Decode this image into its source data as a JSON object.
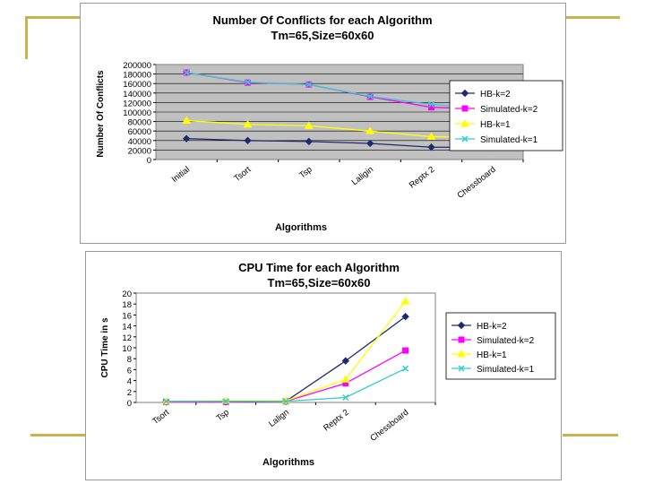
{
  "colors": {
    "deco": "#c8b44a",
    "plot_bg": "#c0c0c0",
    "hb_k2": "#1f2a6e",
    "sim_k2": "#ff00ff",
    "hb_k1": "#ffff00",
    "sim_k1": "#33cccc"
  },
  "chart_data": [
    {
      "type": "line",
      "title": "Number Of Conflicts for each Algorithm",
      "subtitle": "Tm=65,Size=60x60",
      "xlabel": "Algorithms",
      "ylabel": "Number Of Conflicts",
      "categories": [
        "Initial",
        "Tsort",
        "Tsp",
        "Laligin",
        "Reptx 2",
        "Chessboard"
      ],
      "yticks": [
        "0",
        "20000",
        "40000",
        "60000",
        "80000",
        "100000",
        "120000",
        "140000",
        "160000",
        "180000",
        "200000"
      ],
      "ylim": [
        0,
        200000
      ],
      "grid": true,
      "legend": "right",
      "series": [
        {
          "name": "HB-k=2",
          "values": [
            44000,
            40000,
            38000,
            34000,
            26000,
            26000
          ],
          "color": "#1f2a6e",
          "marker": "diamond"
        },
        {
          "name": "Simulated-k=2",
          "values": [
            183000,
            162000,
            158000,
            132000,
            110000,
            106000
          ],
          "color": "#ff00ff",
          "marker": "square"
        },
        {
          "name": "HB-k=1",
          "values": [
            82000,
            74000,
            71000,
            60000,
            48000,
            48000
          ],
          "color": "#ffff00",
          "marker": "triangle"
        },
        {
          "name": "Simulated-k=1",
          "values": [
            183000,
            163000,
            158000,
            133000,
            116000,
            108000
          ],
          "color": "#33cccc",
          "marker": "x"
        }
      ]
    },
    {
      "type": "line",
      "title": "CPU Time for each Algorithm",
      "subtitle": "Tm=65,Size=60x60",
      "xlabel": "Algorithms",
      "ylabel": "CPU Time in s",
      "categories": [
        "Tsort",
        "Tsp",
        "Lalign",
        "Reptx 2",
        "Chessboard"
      ],
      "yticks": [
        "0",
        "2",
        "4",
        "6",
        "8",
        "10",
        "12",
        "14",
        "16",
        "18",
        "20"
      ],
      "ylim": [
        0,
        20
      ],
      "grid": false,
      "legend": "right",
      "series": [
        {
          "name": "HB-k=2",
          "values": [
            0.1,
            0.1,
            0.2,
            7.6,
            15.7
          ],
          "color": "#1f2a6e",
          "marker": "diamond"
        },
        {
          "name": "Simulated-k=2",
          "values": [
            0.1,
            0.1,
            0.2,
            3.5,
            9.5
          ],
          "color": "#ff00ff",
          "marker": "square"
        },
        {
          "name": "HB-k=1",
          "values": [
            0.2,
            0.3,
            0.3,
            4.2,
            18.5
          ],
          "color": "#ffff00",
          "marker": "triangle"
        },
        {
          "name": "Simulated-k=1",
          "values": [
            0.2,
            0.2,
            0.2,
            0.9,
            6.2
          ],
          "color": "#33cccc",
          "marker": "x"
        }
      ]
    }
  ]
}
